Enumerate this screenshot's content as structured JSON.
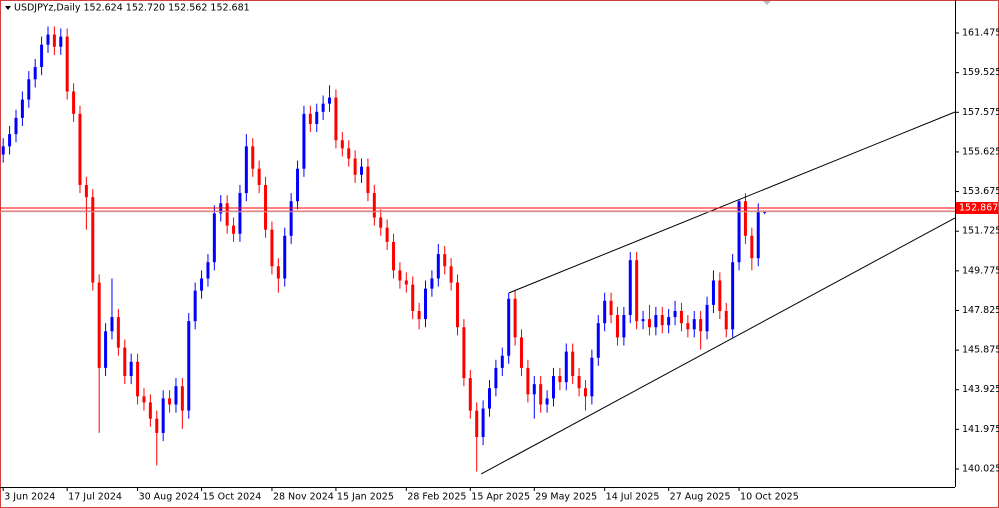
{
  "chart_data": {
    "type": "candlestick",
    "title": "USDJPYz,Daily  152.624 152.720 152.562 152.681",
    "up_color": "#0000ff",
    "down_color": "#ff0000",
    "categories": [
      "3 Jun 2024",
      null,
      null,
      null,
      null,
      null,
      null,
      null,
      null,
      null,
      "17 Jul 2024",
      null,
      null,
      null,
      null,
      null,
      null,
      null,
      null,
      null,
      null,
      "30 Aug 2024",
      null,
      null,
      null,
      null,
      null,
      null,
      null,
      null,
      null,
      "15 Oct 2024",
      null,
      null,
      null,
      null,
      null,
      null,
      null,
      null,
      null,
      null,
      "28 Nov 2024",
      null,
      null,
      null,
      null,
      null,
      null,
      null,
      null,
      null,
      "15 Jan 2025",
      null,
      null,
      null,
      null,
      null,
      null,
      null,
      null,
      null,
      null,
      "28 Feb 2025",
      null,
      null,
      null,
      null,
      null,
      null,
      null,
      null,
      null,
      "15 Apr 2025",
      null,
      null,
      null,
      null,
      null,
      null,
      null,
      null,
      null,
      "29 May 2025",
      null,
      null,
      null,
      null,
      null,
      null,
      null,
      null,
      null,
      null,
      "14 Jul 2025",
      null,
      null,
      null,
      null,
      null,
      null,
      null,
      null,
      null,
      "27 Aug 2025",
      null,
      null,
      null,
      null,
      null,
      null,
      null,
      null,
      null,
      null,
      "10 Oct 2025",
      null,
      null,
      null,
      null
    ],
    "open": [
      155.5,
      155.9,
      156.5,
      157.3,
      158.2,
      159.2,
      159.8,
      160.9,
      161.4,
      160.8,
      161.3,
      158.6,
      157.5,
      154.0,
      153.4,
      149.2,
      145.0,
      146.8,
      147.5,
      146.0,
      144.6,
      145.3,
      143.6,
      143.3,
      142.5,
      141.8,
      143.5,
      143.2,
      144.1,
      142.9,
      147.3,
      148.8,
      149.4,
      150.2,
      152.6,
      153.1,
      152.0,
      151.6,
      153.6,
      155.9,
      154.8,
      154.0,
      151.8,
      150.0,
      149.4,
      151.5,
      153.2,
      154.8,
      157.5,
      157.0,
      157.6,
      158.0,
      158.3,
      156.2,
      155.8,
      155.3,
      154.5,
      154.9,
      153.6,
      152.4,
      151.9,
      151.2,
      149.8,
      149.3,
      149.1,
      147.8,
      147.4,
      148.9,
      149.4,
      150.6,
      150.0,
      149.2,
      147.0,
      144.5,
      142.9,
      141.6,
      143.0,
      144.0,
      145.0,
      145.6,
      148.4,
      146.5,
      145.0,
      143.7,
      144.2,
      143.2,
      143.5,
      144.6,
      144.3,
      145.8,
      144.6,
      144.0,
      143.6,
      145.5,
      147.2,
      148.3,
      147.6,
      146.5,
      147.6,
      150.3,
      147.3,
      147.4,
      147.0,
      147.6,
      147.1,
      147.5,
      147.8,
      147.2,
      146.9,
      147.4,
      146.8,
      148.1,
      149.3,
      147.8,
      146.9,
      150.2,
      153.2,
      151.5,
      150.4,
      152.624
    ],
    "high": [
      156.3,
      156.9,
      157.7,
      158.6,
      159.6,
      160.2,
      161.3,
      161.8,
      161.8,
      161.7,
      161.7,
      159.0,
      157.9,
      154.4,
      153.8,
      149.6,
      147.2,
      149.4,
      147.9,
      146.4,
      145.7,
      145.7,
      144.0,
      143.7,
      142.9,
      143.9,
      143.9,
      144.5,
      144.5,
      147.7,
      149.2,
      149.8,
      150.6,
      153.0,
      153.5,
      153.5,
      152.4,
      154.0,
      156.5,
      156.3,
      155.2,
      154.4,
      152.2,
      150.4,
      151.9,
      153.6,
      155.2,
      157.9,
      157.9,
      158.0,
      158.4,
      158.9,
      158.7,
      156.6,
      156.2,
      155.7,
      155.3,
      155.3,
      154.0,
      152.8,
      152.3,
      151.6,
      150.2,
      149.7,
      149.5,
      148.2,
      149.3,
      149.8,
      151.1,
      151.0,
      150.4,
      149.6,
      147.4,
      144.9,
      143.3,
      143.4,
      144.4,
      145.4,
      146.0,
      148.7,
      148.8,
      146.9,
      145.4,
      144.6,
      144.6,
      143.9,
      145.0,
      145.0,
      146.2,
      146.2,
      145.0,
      144.4,
      145.9,
      147.6,
      148.7,
      148.7,
      148.0,
      148.0,
      150.7,
      150.7,
      147.8,
      148.1,
      148.0,
      148.0,
      147.9,
      148.3,
      148.2,
      147.6,
      147.8,
      147.8,
      148.5,
      149.8,
      149.7,
      148.2,
      150.6,
      153.3,
      153.6,
      151.9,
      153.1,
      152.72
    ],
    "low": [
      155.1,
      155.5,
      156.1,
      156.9,
      157.8,
      158.8,
      159.4,
      160.5,
      160.4,
      160.4,
      158.2,
      157.1,
      153.6,
      151.8,
      148.8,
      141.8,
      144.6,
      146.4,
      145.6,
      144.2,
      144.2,
      143.2,
      142.9,
      142.1,
      140.2,
      141.4,
      142.8,
      142.8,
      142.0,
      142.5,
      146.9,
      148.4,
      149.0,
      149.8,
      152.2,
      151.6,
      151.2,
      151.2,
      153.2,
      154.4,
      153.6,
      151.4,
      149.6,
      148.7,
      149.0,
      151.1,
      152.8,
      154.4,
      156.6,
      156.6,
      157.2,
      157.6,
      155.8,
      155.4,
      154.9,
      154.1,
      154.1,
      153.2,
      152.0,
      151.5,
      150.8,
      149.4,
      148.9,
      148.7,
      147.4,
      146.9,
      147.0,
      148.5,
      149.0,
      149.6,
      148.8,
      146.6,
      144.1,
      142.5,
      139.9,
      141.2,
      142.6,
      143.6,
      144.6,
      145.2,
      146.1,
      144.6,
      143.3,
      142.5,
      142.8,
      142.8,
      143.1,
      143.9,
      143.9,
      144.2,
      143.6,
      142.9,
      143.2,
      145.1,
      146.8,
      147.2,
      146.1,
      146.1,
      147.2,
      146.9,
      146.9,
      146.6,
      146.6,
      146.7,
      146.7,
      147.1,
      146.8,
      146.5,
      146.5,
      145.9,
      146.4,
      147.7,
      147.4,
      146.5,
      146.5,
      149.8,
      151.1,
      149.8,
      150.0,
      152.562
    ],
    "close": [
      155.9,
      156.5,
      157.3,
      158.2,
      159.2,
      159.8,
      160.9,
      161.4,
      160.8,
      161.3,
      158.6,
      157.5,
      154.0,
      153.4,
      149.2,
      145.0,
      146.8,
      147.5,
      146.0,
      144.6,
      145.3,
      143.6,
      143.3,
      142.5,
      141.8,
      143.5,
      143.2,
      144.1,
      142.9,
      147.3,
      148.8,
      149.4,
      150.2,
      152.6,
      153.1,
      152.0,
      151.6,
      153.6,
      155.9,
      154.8,
      154.0,
      151.8,
      150.0,
      149.4,
      151.5,
      153.2,
      154.8,
      157.5,
      157.0,
      157.6,
      158.0,
      158.3,
      156.2,
      155.8,
      155.3,
      154.5,
      154.9,
      153.6,
      152.4,
      151.9,
      151.2,
      149.8,
      149.3,
      149.1,
      147.8,
      147.4,
      148.9,
      149.4,
      150.6,
      150.0,
      149.2,
      147.0,
      144.5,
      142.9,
      141.6,
      143.0,
      144.0,
      145.0,
      145.6,
      148.4,
      146.5,
      145.0,
      143.7,
      144.2,
      143.2,
      143.5,
      144.6,
      144.3,
      145.8,
      144.6,
      144.0,
      143.6,
      145.5,
      147.2,
      148.3,
      147.6,
      146.5,
      147.6,
      150.3,
      147.3,
      147.4,
      147.0,
      147.6,
      147.1,
      147.5,
      147.8,
      147.2,
      146.9,
      147.4,
      146.8,
      148.1,
      149.3,
      147.8,
      146.9,
      150.2,
      153.2,
      151.5,
      150.4,
      152.7,
      152.681
    ],
    "xlim": [
      -0.5,
      148.75
    ],
    "ylim": [
      139.14,
      163.1
    ],
    "yticks": [
      140.025,
      141.975,
      143.925,
      145.875,
      147.825,
      149.775,
      151.725,
      153.675,
      155.625,
      157.575,
      159.525,
      161.475
    ],
    "price_line": 152.867,
    "price_line_color": "#ff0000",
    "trendlines": [
      {
        "x": [
          79.06,
          148.75
        ],
        "y": [
          148.69,
          157.59
        ]
      },
      {
        "x": [
          74.7,
          148.75
        ],
        "y": [
          139.78,
          152.38
        ]
      }
    ]
  }
}
